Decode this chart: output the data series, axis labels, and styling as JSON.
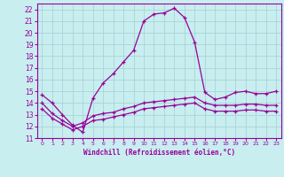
{
  "xlabel": "Windchill (Refroidissement éolien,°C)",
  "bg_color": "#c8eef0",
  "grid_color": "#aad4d8",
  "line_color": "#990099",
  "xlim": [
    -0.5,
    23.5
  ],
  "ylim": [
    11,
    22.5
  ],
  "xticks": [
    0,
    1,
    2,
    3,
    4,
    5,
    6,
    7,
    8,
    9,
    10,
    11,
    12,
    13,
    14,
    15,
    16,
    17,
    18,
    19,
    20,
    21,
    22,
    23
  ],
  "yticks": [
    11,
    12,
    13,
    14,
    15,
    16,
    17,
    18,
    19,
    20,
    21,
    22
  ],
  "curve1_x": [
    0,
    1,
    2,
    3,
    4,
    5,
    6,
    7,
    8,
    9,
    10,
    11,
    12,
    13,
    14,
    15,
    16,
    17,
    18,
    19,
    20,
    21,
    22,
    23
  ],
  "curve1_y": [
    14.7,
    14.0,
    13.0,
    12.1,
    11.5,
    14.4,
    15.7,
    16.5,
    17.5,
    18.5,
    21.0,
    21.6,
    21.7,
    22.1,
    21.3,
    19.2,
    14.9,
    14.3,
    14.5,
    14.9,
    15.0,
    14.8,
    14.8,
    15.0
  ],
  "curve2_x": [
    0,
    1,
    2,
    3,
    4,
    5,
    6,
    7,
    8,
    9,
    10,
    11,
    12,
    13,
    14,
    15,
    16,
    17,
    18,
    19,
    20,
    21,
    22,
    23
  ],
  "curve2_y": [
    14.0,
    13.1,
    12.5,
    12.0,
    12.3,
    12.9,
    13.1,
    13.2,
    13.5,
    13.7,
    14.0,
    14.1,
    14.2,
    14.3,
    14.4,
    14.5,
    14.0,
    13.8,
    13.8,
    13.8,
    13.9,
    13.9,
    13.8,
    13.8
  ],
  "curve3_x": [
    0,
    1,
    2,
    3,
    4,
    5,
    6,
    7,
    8,
    9,
    10,
    11,
    12,
    13,
    14,
    15,
    16,
    17,
    18,
    19,
    20,
    21,
    22,
    23
  ],
  "curve3_y": [
    13.5,
    12.7,
    12.2,
    11.7,
    12.0,
    12.5,
    12.6,
    12.8,
    13.0,
    13.2,
    13.5,
    13.6,
    13.7,
    13.8,
    13.9,
    14.0,
    13.5,
    13.3,
    13.3,
    13.3,
    13.4,
    13.4,
    13.3,
    13.3
  ]
}
